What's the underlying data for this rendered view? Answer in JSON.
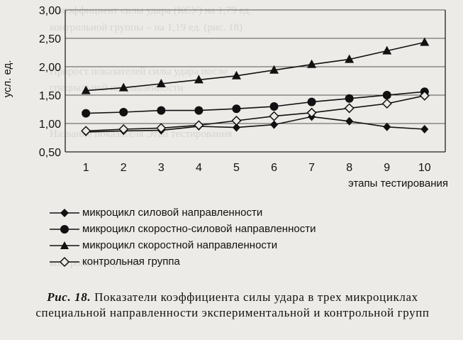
{
  "chart_data": {
    "type": "line",
    "ylabel": "усл. ед.",
    "xlabel": "этапы тестирования",
    "x": [
      1,
      2,
      3,
      4,
      5,
      6,
      7,
      8,
      9,
      10
    ],
    "ylim": [
      0.5,
      3.0
    ],
    "yticks": [
      "0,50",
      "1,00",
      "1,50",
      "2,00",
      "2,50",
      "3,00"
    ],
    "grid": "horizontal",
    "legend_position": "bottom",
    "series": [
      {
        "name": "микроцикл силовой направленности",
        "marker": "diamond-filled",
        "values": [
          0.85,
          0.87,
          0.88,
          0.95,
          0.93,
          0.98,
          1.12,
          1.04,
          0.94,
          0.9
        ]
      },
      {
        "name": "микроцикл скоростно-силовой направленности",
        "marker": "circle-filled",
        "values": [
          1.18,
          1.2,
          1.23,
          1.23,
          1.26,
          1.3,
          1.38,
          1.44,
          1.5,
          1.56
        ]
      },
      {
        "name": "микроцикл скоростной направленности",
        "marker": "triangle-filled",
        "values": [
          1.58,
          1.63,
          1.7,
          1.77,
          1.84,
          1.94,
          2.04,
          2.13,
          2.28,
          2.43
        ]
      },
      {
        "name": "контрольная группа",
        "marker": "diamond-open",
        "values": [
          0.87,
          0.9,
          0.92,
          0.97,
          1.05,
          1.13,
          1.19,
          1.27,
          1.35,
          1.49
        ]
      }
    ]
  },
  "caption": {
    "fig_label": "Рис. 18.",
    "text": "Показатели коэффициента силы удара в трех микроциклах специальной направленности экспериментальной и контрольной групп"
  },
  "bleed_text": [
    "– коэффициент силы удара (КСУ) на 1,79 ед.",
    "контрольной группы – на 1,19 ед. (рис. 18)",
    "Прирост показателей силы удара после",
    "специальной направленности",
    "Название показателя  Этап тестирования",
    "контрольная группа"
  ],
  "colors": {
    "ink": "#111111",
    "grid": "#555555",
    "paper": "#ecebe7"
  }
}
